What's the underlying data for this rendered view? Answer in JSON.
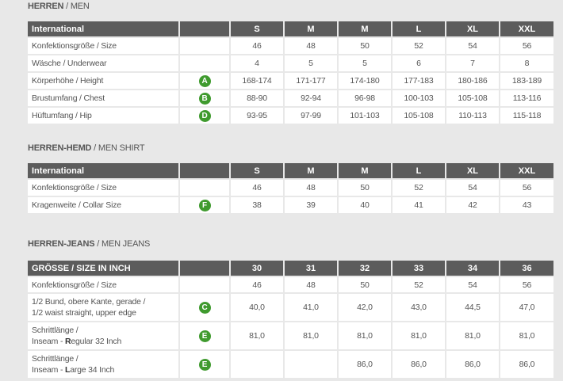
{
  "sections": [
    {
      "title_bold": "HERREN",
      "title_rest": " / MEN",
      "headers": [
        "International",
        "",
        "S",
        "M",
        "M",
        "L",
        "XL",
        "XXL"
      ],
      "rows": [
        {
          "de": "Konfektionsgröße",
          "en": "Size",
          "badge": "",
          "values": [
            "46",
            "48",
            "50",
            "52",
            "54",
            "56"
          ]
        },
        {
          "de": "Wäsche",
          "en": "Underwear",
          "badge": "",
          "values": [
            "4",
            "5",
            "5",
            "6",
            "7",
            "8"
          ]
        },
        {
          "de": "Körperhöhe",
          "en": "Height",
          "badge": "A",
          "values": [
            "168-174",
            "171-177",
            "174-180",
            "177-183",
            "180-186",
            "183-189"
          ]
        },
        {
          "de": "Brustumfang",
          "en": "Chest",
          "badge": "B",
          "values": [
            "88-90",
            "92-94",
            "96-98",
            "100-103",
            "105-108",
            "113-116"
          ]
        },
        {
          "de": "Hüftumfang",
          "en": "Hip",
          "badge": "D",
          "values": [
            "93-95",
            "97-99",
            "101-103",
            "105-108",
            "110-113",
            "115-118"
          ]
        }
      ]
    },
    {
      "title_bold": "HERREN-HEMD",
      "title_rest": " / MEN SHIRT",
      "headers": [
        "International",
        "",
        "S",
        "M",
        "M",
        "L",
        "XL",
        "XXL"
      ],
      "rows": [
        {
          "de": "Konfektionsgröße",
          "en": "Size",
          "badge": "",
          "values": [
            "46",
            "48",
            "50",
            "52",
            "54",
            "56"
          ]
        },
        {
          "de": "Kragenweite",
          "en": "Collar Size",
          "badge": "F",
          "values": [
            "38",
            "39",
            "40",
            "41",
            "42",
            "43"
          ]
        }
      ]
    },
    {
      "title_bold": "HERREN-JEANS",
      "title_rest": " / MEN JEANS",
      "headers": [
        "GRÖSSE / SIZE IN INCH",
        "",
        "30",
        "31",
        "32",
        "33",
        "34",
        "36"
      ],
      "rows": [
        {
          "de": "Konfektionsgröße",
          "en": "Size",
          "badge": "",
          "values": [
            "46",
            "48",
            "50",
            "52",
            "54",
            "56"
          ]
        },
        {
          "de": "1/2 Bund, obere Kante, gerade",
          "en2": "1/2 waist straight, upper edge",
          "badge": "C",
          "values": [
            "40,0",
            "41,0",
            "42,0",
            "43,0",
            "44,5",
            "47,0"
          ]
        },
        {
          "de": "Schrittlänge",
          "en_pre": "Inseam - ",
          "en_bold": "R",
          "en_post": "egular 32 Inch",
          "badge": "E",
          "values": [
            "81,0",
            "81,0",
            "81,0",
            "81,0",
            "81,0",
            "81,0"
          ]
        },
        {
          "de": "Schrittlänge",
          "en_pre": "Inseam - ",
          "en_bold": "L",
          "en_post": "arge 34 Inch",
          "badge": "E",
          "values": [
            "",
            "",
            "86,0",
            "86,0",
            "86,0",
            "86,0"
          ]
        }
      ]
    }
  ],
  "colors": {
    "header": "#5c5c5c",
    "badge": "#3f9a2e",
    "background": "#e8e8e8"
  }
}
